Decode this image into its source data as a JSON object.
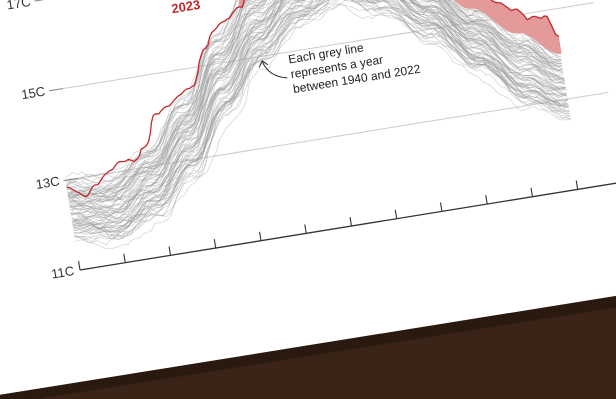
{
  "chart_data": {
    "type": "line",
    "title": "",
    "xlabel": "",
    "ylabel": "",
    "ylim": [
      11,
      17.6
    ],
    "y_ticks": [
      {
        "value": 11,
        "label": "11C"
      },
      {
        "value": 13,
        "label": "13C"
      },
      {
        "value": 15,
        "label": "15C"
      },
      {
        "value": 17,
        "label": "17C"
      }
    ],
    "x_range": [
      0,
      365
    ],
    "x_tick_count": 13,
    "grid": true,
    "highlight_series": {
      "name": "2023",
      "color": "#c0282c",
      "fill_color": "#e59a9a",
      "x": [
        0,
        10,
        20,
        30,
        40,
        50,
        60,
        70,
        80,
        90,
        100,
        110,
        120,
        130,
        140,
        150,
        160,
        170,
        180,
        190,
        200,
        210,
        220,
        230,
        240,
        250,
        260,
        270,
        280,
        290,
        300,
        310,
        320,
        330,
        340,
        350,
        358
      ],
      "y": [
        12.9,
        12.6,
        12.75,
        13.0,
        13.2,
        13.2,
        13.5,
        14.1,
        14.3,
        14.5,
        14.65,
        15.3,
        15.75,
        15.9,
        16.15,
        16.4,
        16.75,
        17.05,
        17.35,
        17.4,
        17.45,
        17.55,
        17.45,
        17.35,
        17.25,
        17.05,
        16.85,
        16.6,
        16.35,
        16.15,
        15.85,
        15.55,
        15.3,
        15.15,
        14.9,
        14.85,
        14.35
      ]
    },
    "background_series": {
      "label": "1940–2022",
      "color": "#9a9a9a",
      "count": 83
    },
    "climatology_band": {
      "x": [
        0,
        30,
        60,
        90,
        120,
        150,
        180,
        210,
        240,
        270,
        300,
        330,
        358
      ],
      "upper": [
        13.0,
        12.9,
        13.4,
        14.3,
        15.6,
        16.5,
        17.1,
        17.3,
        16.95,
        16.2,
        15.3,
        14.6,
        14.0
      ],
      "lower": [
        11.7,
        11.5,
        11.9,
        12.7,
        13.9,
        14.9,
        15.6,
        15.9,
        15.5,
        14.8,
        13.9,
        13.0,
        12.6
      ]
    }
  },
  "annotations": {
    "label_2023": "2023",
    "grey_line_note": [
      "Each grey line",
      "represents a year",
      "between 1940 and 2022"
    ]
  },
  "colors": {
    "page_background": "#3a2418",
    "paper": "#ffffff",
    "grid": "#cccccc",
    "axis": "#333333"
  }
}
